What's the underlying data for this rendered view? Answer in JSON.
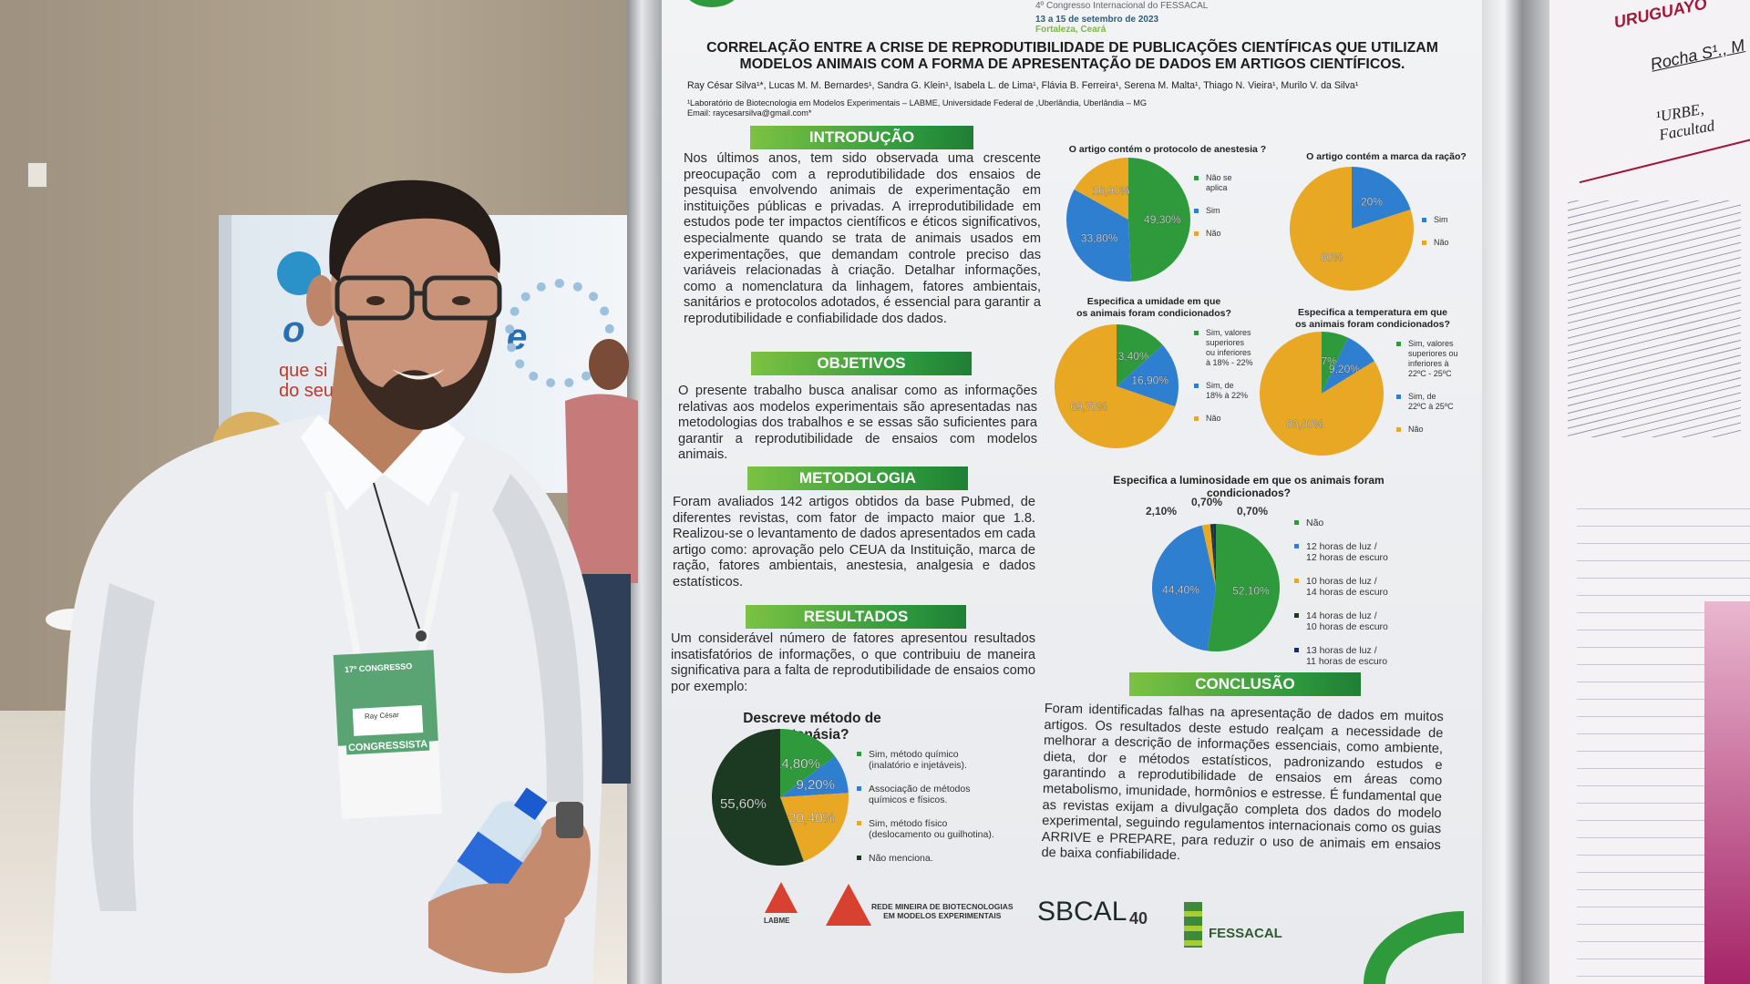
{
  "scene": {
    "booth": {
      "fragment_1": "o",
      "fragment_2": "e",
      "line_1": "que si",
      "line_2": "do seu"
    },
    "badge": {
      "event": "17º CONGRESSO",
      "name": "Ray César",
      "role": "CONGRESSISTA"
    }
  },
  "poster": {
    "event": {
      "name": "4º Congresso Internacional do FESSACAL",
      "dates": "13 a 15 de setembro de 2023",
      "place": "Fortaleza, Ceará"
    },
    "title": "CORRELAÇÃO ENTRE A CRISE DE REPRODUTIBILIDADE DE PUBLICAÇÕES CIENTÍFICAS QUE UTILIZAM MODELOS ANIMAIS COM A FORMA DE APRESENTAÇÃO DE DADOS EM ARTIGOS CIENTÍFICOS.",
    "authors": "Ray César Silva¹*, Lucas M. M. Bernardes¹, Sandra G. Klein¹, Isabela L. de Lima¹, Flávia B. Ferreira¹, Serena M. Malta¹, Thiago N. Vieira¹, Murilo V. da Silva¹",
    "affiliation": "¹Laboratório de Biotecnologia em Modelos Experimentais – LABME, Universidade Federal de ,Uberlândia, Uberlândia – MG",
    "email": "Email: raycesarsilva@gmail.com*",
    "sections": {
      "intro": {
        "heading": "INTRODUÇÃO",
        "text": "Nos últimos anos, tem sido observada uma crescente preocupação com a reprodutibilidade dos ensaios de pesquisa envolvendo animais de experimentação em instituições públicas e privadas. A irreprodutibilidade em estudos pode ter impactos científicos e éticos significativos, especialmente quando se trata de animais usados em experimentações, que demandam controle preciso das variáveis relacionadas à criação. Detalhar informações, como a nomenclatura da linhagem, fatores ambientais, sanitários e protocolos adotados, é essencial para garantir a reprodutibilidade e confiabilidade dos dados."
      },
      "objectives": {
        "heading": "OBJETIVOS",
        "text": "O presente trabalho busca analisar como as informações relativas aos modelos experimentais são apresentadas nas metodologias dos trabalhos e se essas são suficientes para garantir a reprodutibilidade de ensaios com modelos animais."
      },
      "methods": {
        "heading": "METODOLOGIA",
        "text": "Foram avaliados 142 artigos obtidos da base Pubmed, de diferentes revistas, com fator de impacto maior que 1.8. Realizou-se o levantamento de dados apresentados em cada artigo como:  aprovação pelo CEUA da Instituição, marca de ração, fatores ambientais, anestesia, analgesia e dados estatísticos."
      },
      "results": {
        "heading": "RESULTADOS",
        "text": "Um considerável número de fatores apresentou resultados insatisfatórios de informações, o que contribuiu de maneira significativa para a falta de reprodutibilidade de ensaios como por exemplo:"
      },
      "conclusion": {
        "heading": "CONCLUSÃO",
        "text": "Foram identificadas falhas na apresentação de dados em muitos artigos. Os resultados deste estudo realçam a necessidade de melhorar a descrição de informações essenciais, como ambiente, dieta, dor e métodos estatísticos, padronizando estudos e garantindo a reprodutibilidade de ensaios em áreas como metabolismo, imunidade, hormônios e estresse. É fundamental que as revistas exijam a divulgação completa dos dados do modelo experimental, seguindo regulamentos internacionais como os guias ARRIVE e PREPARE, para reduzir o uso de animais em ensaios de baixa confiabilidade."
      }
    },
    "logos": {
      "labme": "LABME",
      "rede": "REDE MINEIRA DE BIOTECNOLOGIAS\nEM MODELOS EXPERIMENTAIS",
      "sbcal": "SBCAL",
      "sbcal_years": "40",
      "fessacal": "FESSACAL"
    }
  },
  "poster2": {
    "title": "URUGUAYO",
    "authors": "Rocha S¹., M",
    "affiliation": "¹URBE, Facultad"
  },
  "chart_data": [
    {
      "type": "pie",
      "title": "O artigo contém o protocolo de anestesia ?",
      "categories": [
        "Não se\naplica",
        "Sim",
        "Não"
      ],
      "values": [
        49.3,
        33.8,
        16.9
      ],
      "labels": [
        "49,30%",
        "33,80%",
        "16,90%"
      ],
      "colors": [
        "#2f9a3c",
        "#2f7fd1",
        "#e8a823"
      ],
      "legend": "right"
    },
    {
      "type": "pie",
      "title": "O artigo contém a marca da ração?",
      "categories": [
        "Sim",
        "Não"
      ],
      "values": [
        20,
        80
      ],
      "labels": [
        "20%",
        "80%"
      ],
      "colors": [
        "#2f7fd1",
        "#e8a823"
      ],
      "legend": "right"
    },
    {
      "type": "pie",
      "title": "Especifica a umidade em que\nos animais foram condicionados?",
      "categories": [
        "Sim, valores\nsuperiores\nou inferiores\nà 18% - 22%",
        "Sim, de\n18% à 22%",
        "Não"
      ],
      "values": [
        13.4,
        16.9,
        69.7
      ],
      "labels": [
        "13,40%",
        "16,90%",
        "69,70%"
      ],
      "colors": [
        "#2f9a3c",
        "#2f7fd1",
        "#e8a823"
      ],
      "legend": "right"
    },
    {
      "type": "pie",
      "title": "Especifica a temperatura em que\nos animais foram condicionados?",
      "categories": [
        "Sim, valores\nsuperiores ou\ninferiores à\n22ºC - 25ºC",
        "Sim, de\n22ºC à 25ºC",
        "Não"
      ],
      "values": [
        7,
        9.2,
        83.8
      ],
      "labels": [
        "7%",
        "9,20%",
        "83,80%"
      ],
      "colors": [
        "#2f9a3c",
        "#2f7fd1",
        "#e8a823"
      ],
      "legend": "right"
    },
    {
      "type": "pie",
      "title": "Especifica a luminosidade em que os animais foram\ncondicionados?",
      "categories": [
        "Não",
        "12 horas de luz /\n12 horas de escuro",
        "10 horas de luz /\n14 horas de escuro",
        "14 horas de luz /\n10 horas de escuro",
        "13 horas de luz /\n11 horas de escuro"
      ],
      "values": [
        52.1,
        44.4,
        2.1,
        0.7,
        0.7
      ],
      "labels": [
        "52,10%",
        "44,40%",
        "2,10%",
        "0,70%",
        "0,70%"
      ],
      "colors": [
        "#2f9a3c",
        "#2f7fd1",
        "#e8a823",
        "#1c3a22",
        "#1a2a6a"
      ],
      "legend": "right"
    },
    {
      "type": "pie",
      "title": "Descreve método de eutanásia?",
      "categories": [
        "Sim, método químico\n(inalatório e injetáveis).",
        "Associação de métodos\nquímicos e físicos.",
        "Sim, método físico\n(deslocamento ou guilhotina).",
        "Não menciona."
      ],
      "values": [
        14.8,
        9.2,
        20.4,
        55.6
      ],
      "labels": [
        "14,80%",
        "9,20%",
        "20,40%",
        "55,60%"
      ],
      "colors": [
        "#2f9a3c",
        "#2f7fd1",
        "#e8a823",
        "#1c3a22"
      ],
      "legend": "right"
    }
  ]
}
